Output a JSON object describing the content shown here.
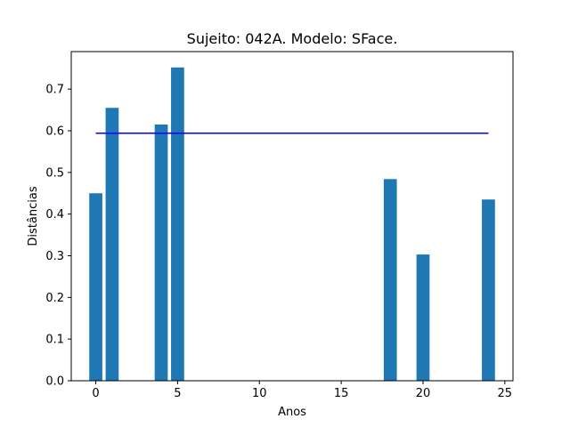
{
  "chart_data": {
    "type": "bar",
    "title": "Sujeito: 042A. Modelo: SFace.",
    "xlabel": "Anos",
    "ylabel": "Distâncias",
    "x": [
      0,
      1,
      4,
      5,
      18,
      20,
      24
    ],
    "values": [
      0.45,
      0.655,
      0.615,
      0.752,
      0.484,
      0.303,
      0.435
    ],
    "bar_width": 0.8,
    "xlim": [
      -1.5,
      25.5
    ],
    "ylim": [
      0,
      0.79
    ],
    "xticks": [
      0,
      5,
      10,
      15,
      20,
      25
    ],
    "yticks": [
      0.0,
      0.1,
      0.2,
      0.3,
      0.4,
      0.5,
      0.6,
      0.7
    ],
    "ytick_labels": [
      "0.0",
      "0.1",
      "0.2",
      "0.3",
      "0.4",
      "0.5",
      "0.6",
      "0.7"
    ],
    "threshold_line": {
      "y": 0.594,
      "x_start": 0,
      "x_end": 24,
      "color": "#0000ff"
    },
    "bar_color": "#1f77b4",
    "grid": false,
    "legend": "none"
  }
}
